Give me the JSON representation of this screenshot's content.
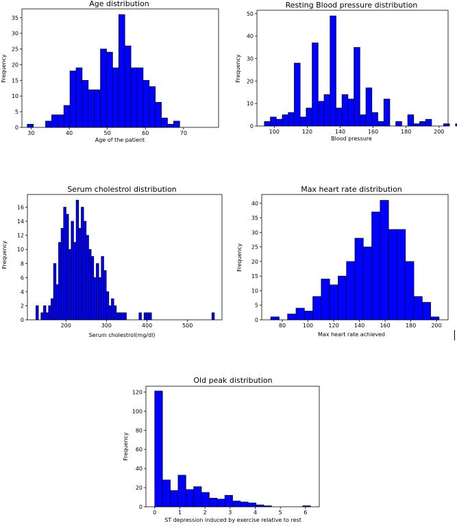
{
  "chart_data": [
    {
      "type": "bar",
      "title": "Age distribution",
      "xlabel": "Age of the patient",
      "ylabel": "Frequency",
      "xlim": [
        27.6,
        79.2
      ],
      "ylim": [
        0,
        37.8
      ],
      "xticks": [
        30,
        40,
        50,
        60,
        70
      ],
      "yticks": [
        0,
        5,
        10,
        15,
        20,
        25,
        30,
        35
      ],
      "bar_color": "#0000ff",
      "bin_start": 29,
      "bin_width": 1.6,
      "values": [
        1,
        0,
        0,
        2,
        4,
        4,
        7,
        18,
        19,
        15,
        12,
        12,
        25,
        24,
        19,
        36,
        26,
        19,
        19,
        15,
        13,
        8,
        3,
        1,
        2
      ]
    },
    {
      "type": "bar",
      "title": "Resting Blood pressure distribution",
      "xlabel": "Blood pressure",
      "ylabel": "Frequency",
      "xlim": [
        89.5,
        205.5
      ],
      "ylim": [
        0,
        51.5
      ],
      "xticks": [
        100,
        120,
        140,
        160,
        180,
        200
      ],
      "yticks": [
        0,
        10,
        20,
        30,
        40,
        50
      ],
      "bar_color": "#0000ff",
      "bin_start": 94,
      "bin_width": 3.625,
      "values": [
        2,
        4,
        3,
        5,
        6,
        28,
        4,
        8,
        37,
        11,
        14,
        49,
        8,
        14,
        12,
        35,
        5,
        17,
        6,
        2,
        12,
        0,
        2,
        0,
        5,
        1,
        2,
        3,
        0,
        0,
        1,
        0,
        1
      ]
    },
    {
      "type": "bar",
      "title": "Serum cholestrol distribution",
      "xlabel": "Serum cholestrol(mg/dl)",
      "ylabel": "Frequency",
      "xlim": [
        105,
        585
      ],
      "ylim": [
        0,
        17.8
      ],
      "xticks": [
        200,
        300,
        400,
        500
      ],
      "yticks": [
        0,
        2,
        4,
        6,
        8,
        10,
        12,
        14,
        16
      ],
      "bar_color": "#0000ff",
      "bin_start": 126,
      "bin_width": 6.2,
      "values": [
        2,
        0,
        1,
        2,
        1,
        2,
        3,
        8,
        5,
        11,
        13,
        16,
        15,
        10,
        14,
        11,
        17,
        13,
        16,
        14,
        12,
        10,
        9,
        6,
        8,
        6,
        9,
        7,
        4,
        2,
        3,
        2,
        1,
        1,
        1,
        1,
        0,
        0,
        0,
        0,
        0,
        1,
        0,
        1,
        1,
        1,
        0,
        0,
        0,
        0,
        0,
        0,
        0,
        0,
        0,
        0,
        0,
        0,
        0,
        0,
        0,
        0,
        0,
        0,
        0,
        0,
        0,
        0,
        0,
        0,
        1
      ]
    },
    {
      "type": "bar",
      "title": "Max heart rate distribution",
      "xlabel": "Max heart rate achieved",
      "ylabel": "Frequency",
      "xlim": [
        64,
        209
      ],
      "ylim": [
        0,
        43
      ],
      "xticks": [
        80,
        100,
        120,
        140,
        160,
        180,
        200
      ],
      "yticks": [
        0,
        5,
        10,
        15,
        20,
        25,
        30,
        35,
        40
      ],
      "bar_color": "#0000ff",
      "bin_start": 71,
      "bin_width": 6.55,
      "values": [
        1,
        0,
        2,
        4,
        3,
        8,
        14,
        12,
        15,
        20,
        28,
        25,
        37,
        41,
        31,
        31,
        20,
        8,
        6,
        1
      ]
    },
    {
      "type": "bar",
      "title": "Old peak distribution",
      "xlabel": "ST depression induced by exercise relative to rest",
      "ylabel": "Frequency",
      "xlim": [
        -0.35,
        6.55
      ],
      "ylim": [
        0,
        126
      ],
      "xticks": [
        0,
        1,
        2,
        3,
        4,
        5,
        6
      ],
      "yticks": [
        0,
        20,
        40,
        60,
        80,
        100,
        120
      ],
      "bar_color": "#0000ff",
      "bin_start": 0,
      "bin_width": 0.31,
      "values": [
        121,
        28,
        17,
        33,
        18,
        21,
        15,
        9,
        8,
        12,
        6,
        5,
        4,
        2,
        1,
        0,
        0,
        0,
        0,
        1
      ]
    }
  ]
}
